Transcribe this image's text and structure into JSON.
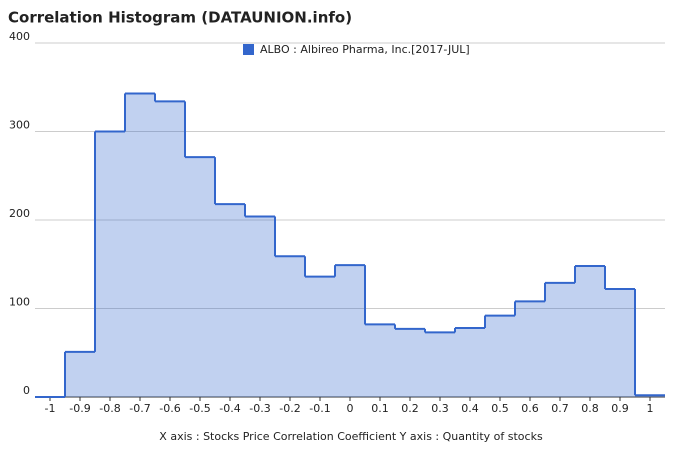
{
  "chart_data": {
    "type": "histogram",
    "title": "Correlation Histogram (DATAUNION.info)",
    "x_label": "X axis : Stocks Price Correlation Coefficient  Y axis : Quantity of stocks",
    "series": [
      {
        "name": "ALBO : Albireo Pharma, Inc.[2017-JUL]",
        "color": "#3366cc",
        "bins": [
          -1.05,
          -0.95,
          -0.85,
          -0.75,
          -0.65,
          -0.55,
          -0.45,
          -0.35,
          -0.25,
          -0.15,
          -0.05,
          0.05,
          0.15,
          0.25,
          0.35,
          0.45,
          0.55,
          0.65,
          0.75,
          0.85,
          0.95,
          1.05
        ],
        "values": [
          0,
          51,
          300,
          343,
          334,
          271,
          218,
          204,
          159,
          136,
          149,
          82,
          77,
          73,
          78,
          92,
          108,
          129,
          148,
          122,
          2
        ]
      }
    ],
    "xlim": [
      -1.05,
      1.05
    ],
    "xticks": [
      -1,
      -0.9,
      -0.8,
      -0.7,
      -0.6,
      -0.5,
      -0.4,
      -0.3,
      -0.2,
      -0.1,
      0,
      0.1,
      0.2,
      0.3,
      0.4,
      0.5,
      0.6,
      0.7,
      0.8,
      0.9,
      1
    ],
    "ylim": [
      0,
      400
    ],
    "yticks": [
      0,
      100,
      200,
      300,
      400
    ],
    "grid": true,
    "legend": "top"
  }
}
